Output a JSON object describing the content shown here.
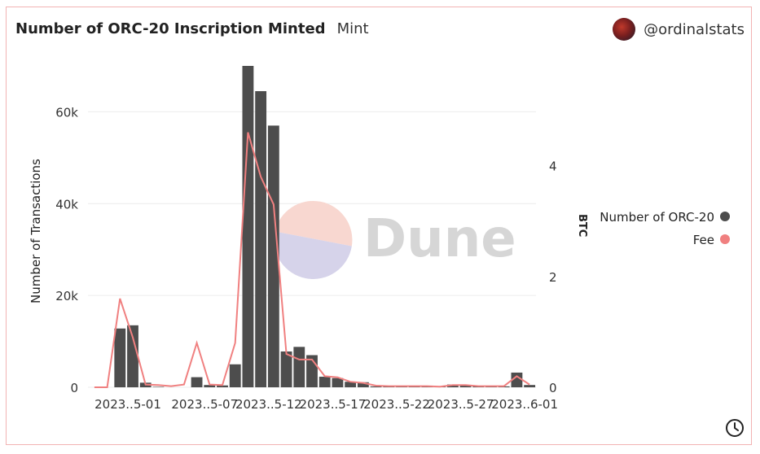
{
  "header": {
    "title": "Number of ORC-20 Inscription Minted",
    "subtitle": "Mint",
    "author": "@ordinalstats"
  },
  "watermark": "Dune",
  "icons": {
    "avatar": "avatar-icon",
    "clock": "clock-icon"
  },
  "chart_data": {
    "type": "bar",
    "y_axis_left": {
      "label": "Number of Transactions",
      "ticks": [
        "0",
        "20k",
        "40k",
        "60k"
      ],
      "range": [
        0,
        70000
      ]
    },
    "y_axis_right": {
      "label": "BTC",
      "ticks": [
        "0",
        "2",
        "4"
      ],
      "range": [
        0,
        5.8
      ]
    },
    "x_tick_labels": [
      "2023..5-01",
      "2023..5-07",
      "2023..5-12",
      "2023..5-17",
      "2023..5-22",
      "2023..5-27",
      "2023..6-01"
    ],
    "x_tick_index": [
      3,
      9,
      14,
      19,
      24,
      29,
      34
    ],
    "series": [
      {
        "name": "Number of ORC-20",
        "kind": "bar",
        "color": "#4d4d4d",
        "values": [
          0,
          0,
          12800,
          13500,
          1000,
          100,
          0,
          0,
          2200,
          500,
          400,
          5000,
          70000,
          64500,
          57000,
          7800,
          8800,
          7000,
          2300,
          2000,
          1200,
          1100,
          200,
          200,
          300,
          200,
          300,
          100,
          600,
          500,
          300,
          300,
          200,
          3200,
          500
        ]
      },
      {
        "name": "Fee",
        "kind": "line",
        "color": "#f08080",
        "values": [
          0,
          0,
          1.6,
          0.9,
          0.05,
          0.04,
          0.02,
          0.05,
          0.8,
          0.05,
          0.04,
          0.8,
          4.6,
          3.8,
          3.3,
          0.6,
          0.5,
          0.5,
          0.2,
          0.18,
          0.1,
          0.08,
          0.03,
          0.02,
          0.02,
          0.02,
          0.02,
          0.01,
          0.04,
          0.04,
          0.02,
          0.02,
          0.02,
          0.2,
          0.05
        ]
      }
    ],
    "legend": {
      "placement": "right",
      "items": [
        "Number of ORC-20",
        "Fee"
      ]
    },
    "grid": true
  }
}
